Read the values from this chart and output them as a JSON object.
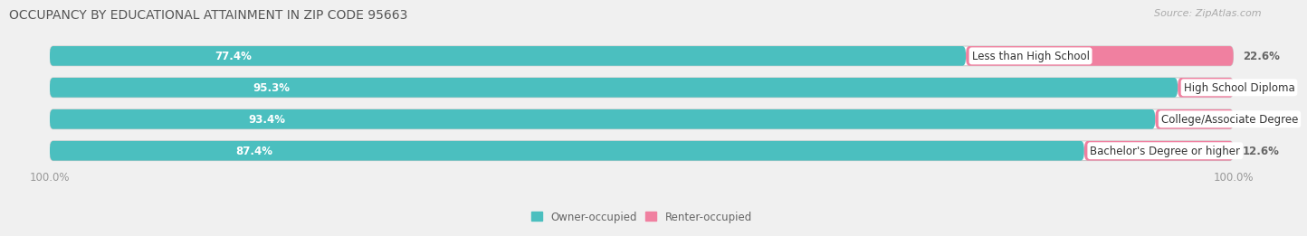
{
  "title": "OCCUPANCY BY EDUCATIONAL ATTAINMENT IN ZIP CODE 95663",
  "source": "Source: ZipAtlas.com",
  "categories": [
    "Less than High School",
    "High School Diploma",
    "College/Associate Degree",
    "Bachelor's Degree or higher"
  ],
  "owner_values": [
    77.4,
    95.3,
    93.4,
    87.4
  ],
  "renter_values": [
    22.6,
    4.7,
    6.6,
    12.6
  ],
  "owner_color": "#4BBFBF",
  "renter_color": "#F080A0",
  "background_color": "#f0f0f0",
  "bar_bg_color": "#e0e0e0",
  "row_bg_color": "#e8e8e8",
  "title_fontsize": 10,
  "source_fontsize": 8,
  "label_fontsize": 8.5,
  "pct_fontsize": 8.5,
  "tick_fontsize": 8.5,
  "bar_height": 0.62,
  "xlim": [
    0,
    100
  ]
}
